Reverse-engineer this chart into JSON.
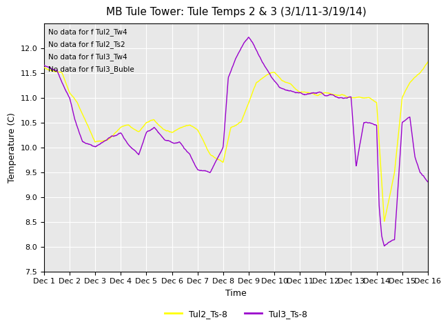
{
  "title": "MB Tule Tower: Tule Temps 2 & 3 (3/1/11-3/19/14)",
  "xlabel": "Time",
  "ylabel": "Temperature (C)",
  "ylim": [
    7.5,
    12.5
  ],
  "xlim": [
    0,
    15
  ],
  "yticks": [
    7.5,
    8.0,
    8.5,
    9.0,
    9.5,
    10.0,
    10.5,
    11.0,
    11.5,
    12.0
  ],
  "xtick_labels": [
    "Dec 1",
    "Dec 2",
    "Dec 3",
    "Dec 4",
    "Dec 5",
    "Dec 6",
    "Dec 7",
    "Dec 8",
    "Dec 9",
    "Dec 10",
    "Dec 11",
    "Dec 12",
    "Dec 13",
    "Dec 14",
    "Dec 15",
    "Dec 16"
  ],
  "line1_color": "#ffff00",
  "line2_color": "#9900cc",
  "no_data_texts": [
    "No data for f Tul2_Tw4",
    "No data for f Tul2_Ts2",
    "No data for f Tul3_Tw4",
    "No data for f Tul3_Buble"
  ],
  "legend_labels": [
    "Tul2_Ts-8",
    "Tul3_Ts-8"
  ],
  "bg_color": "#e8e8e8",
  "title_fontsize": 11,
  "axis_fontsize": 9,
  "tick_fontsize": 8
}
